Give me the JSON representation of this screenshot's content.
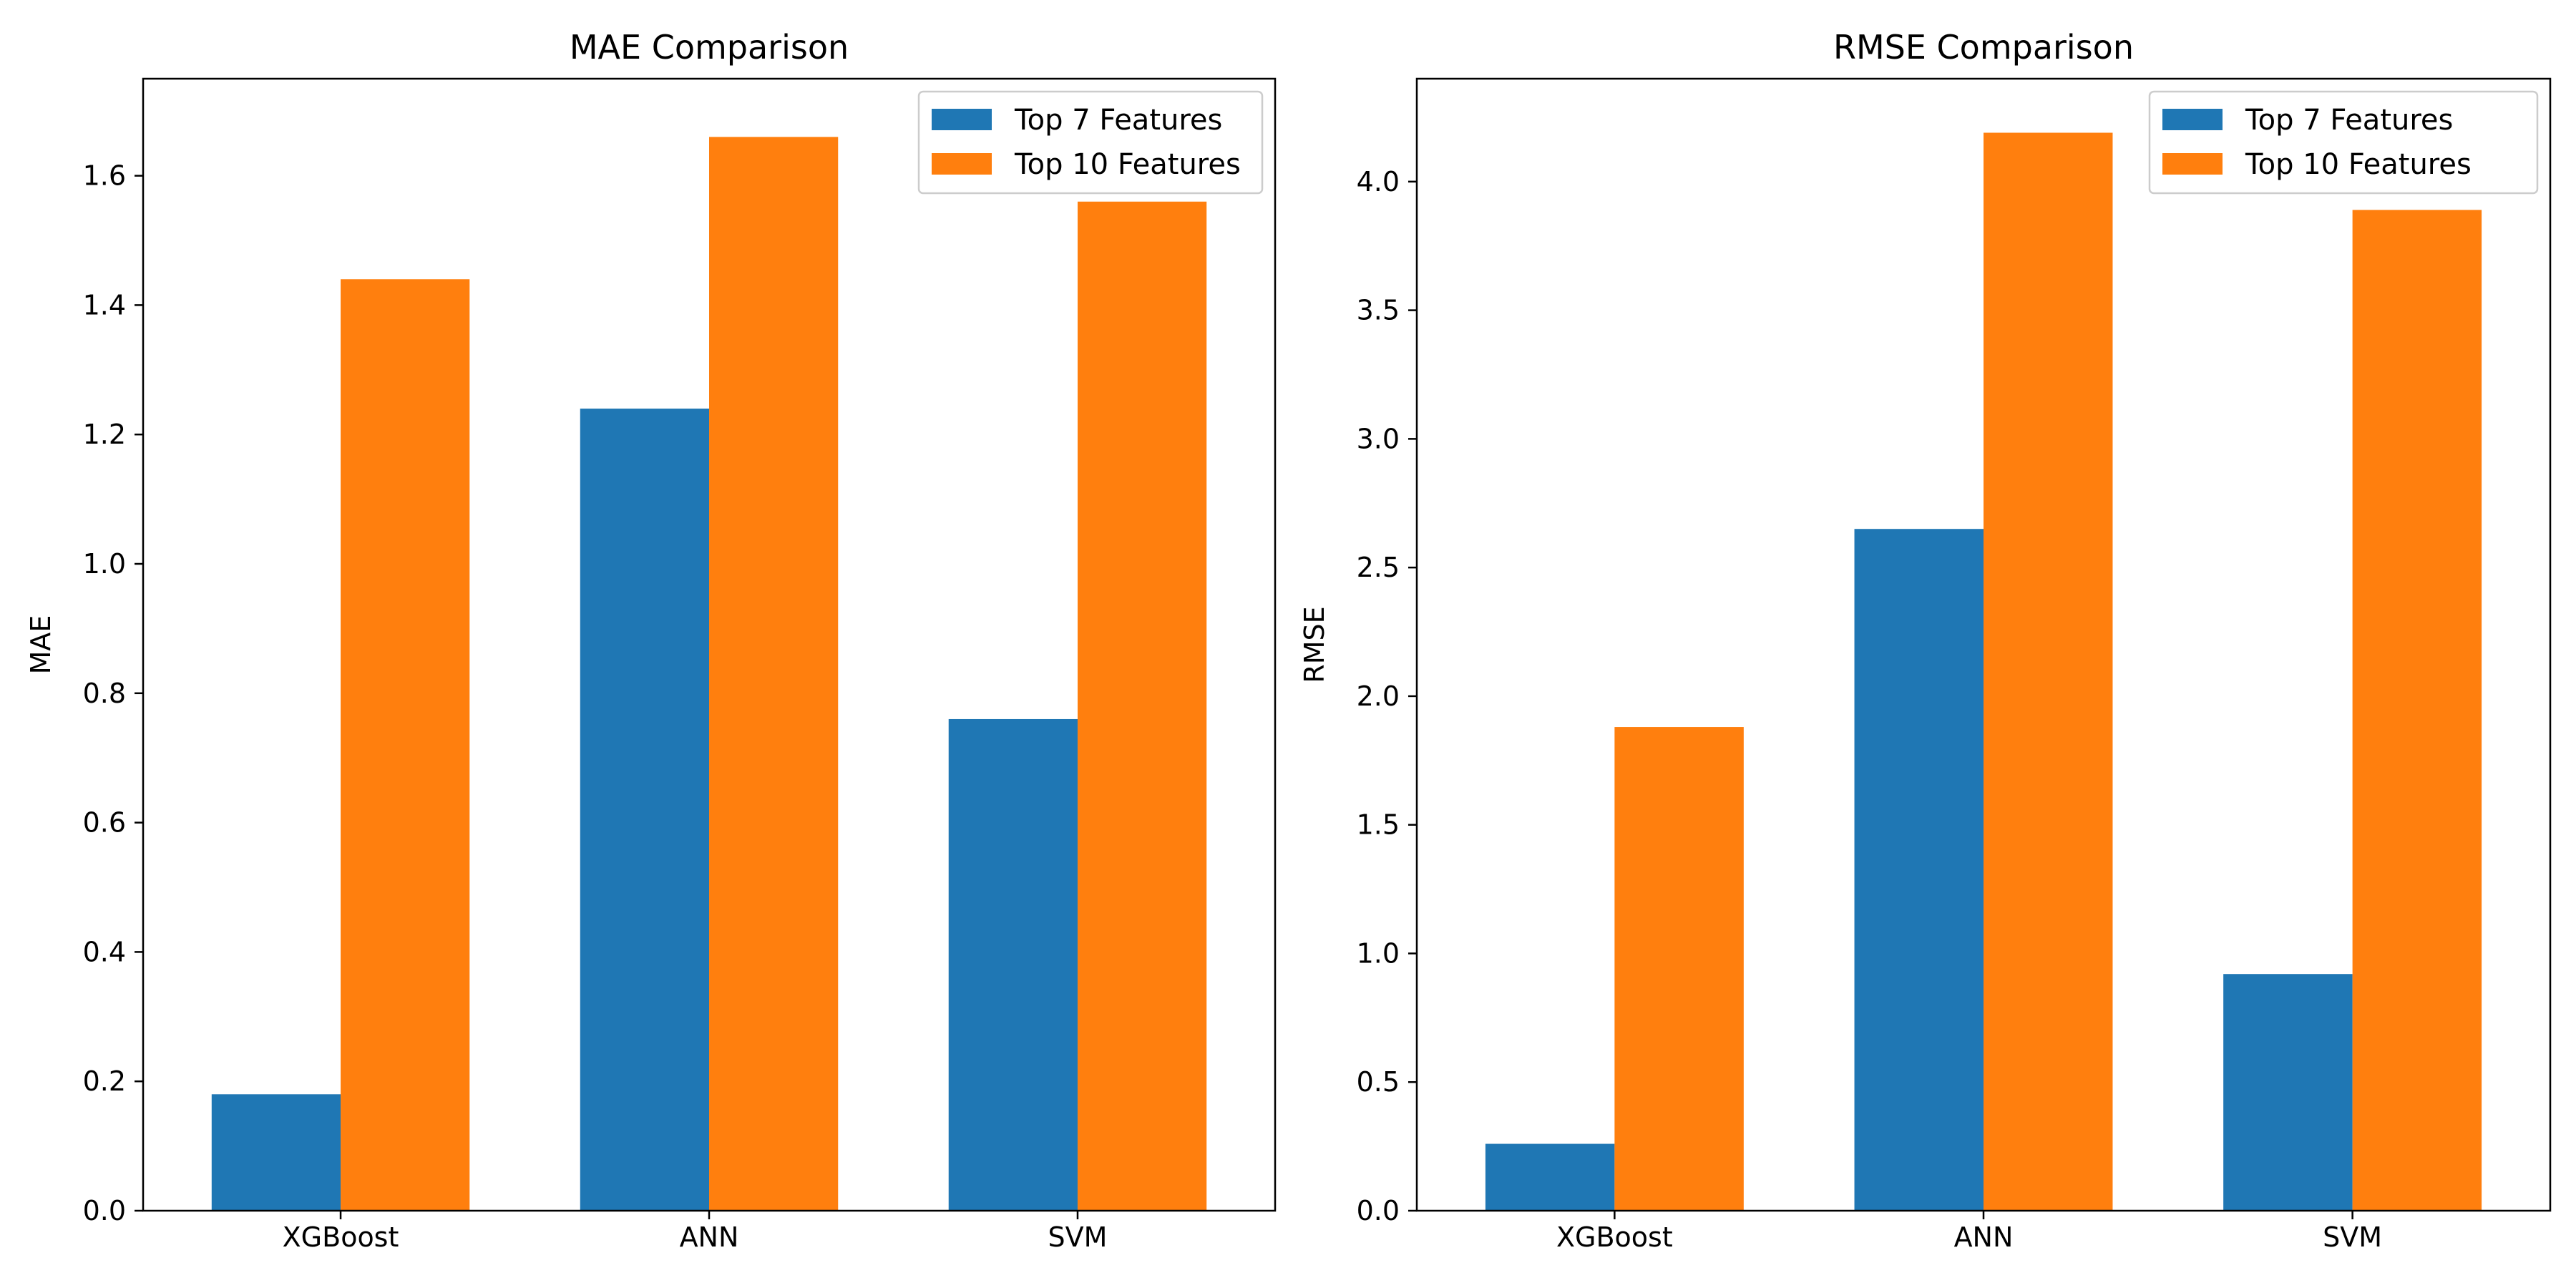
{
  "chart_data": [
    {
      "type": "bar",
      "title": "MAE Comparison",
      "xlabel": "",
      "ylabel": "MAE",
      "categories": [
        "XGBoost",
        "ANN",
        "SVM"
      ],
      "series": [
        {
          "name": "Top 7 Features",
          "color": "#1f77b4",
          "values": [
            0.18,
            1.24,
            0.76
          ]
        },
        {
          "name": "Top 10 Features",
          "color": "#ff7f0e",
          "values": [
            1.44,
            1.66,
            1.56
          ]
        }
      ],
      "ylim": [
        0,
        1.75
      ],
      "yticks": [
        0.0,
        0.2,
        0.4,
        0.6,
        0.8,
        1.0,
        1.2,
        1.4,
        1.6
      ],
      "ytick_labels": [
        "0.0",
        "0.2",
        "0.4",
        "0.6",
        "0.8",
        "1.0",
        "1.2",
        "1.4",
        "1.6"
      ],
      "grid": false,
      "legend_position": "top-right"
    },
    {
      "type": "bar",
      "title": "RMSE Comparison",
      "xlabel": "",
      "ylabel": "RMSE",
      "categories": [
        "XGBoost",
        "ANN",
        "SVM"
      ],
      "series": [
        {
          "name": "Top 7 Features",
          "color": "#1f77b4",
          "values": [
            0.26,
            2.65,
            0.92
          ]
        },
        {
          "name": "Top 10 Features",
          "color": "#ff7f0e",
          "values": [
            1.88,
            4.19,
            3.89
          ]
        }
      ],
      "ylim": [
        0,
        4.4
      ],
      "yticks": [
        0.0,
        0.5,
        1.0,
        1.5,
        2.0,
        2.5,
        3.0,
        3.5,
        4.0
      ],
      "ytick_labels": [
        "0.0",
        "0.5",
        "1.0",
        "1.5",
        "2.0",
        "2.5",
        "3.0",
        "3.5",
        "4.0"
      ],
      "grid": false,
      "legend_position": "top-right"
    }
  ]
}
